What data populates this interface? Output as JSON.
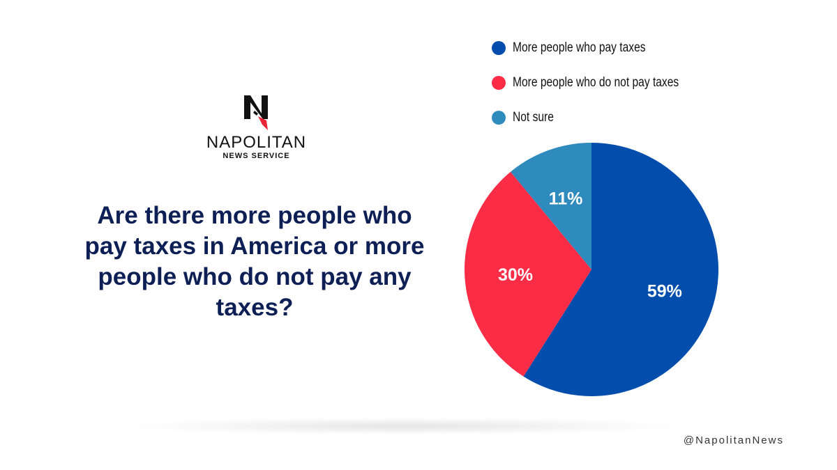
{
  "branding": {
    "logo_name": "NAPOLITAN",
    "logo_sub": "NEWS SERVICE",
    "handle": "@NapolitanNews"
  },
  "question": "Are there more people who pay taxes in America or more people who do not pay any taxes?",
  "colors": {
    "pay_taxes": "#034ead",
    "not_pay_taxes": "#fb2c45",
    "not_sure": "#2f8bbd",
    "text_dark": "#0d1f55"
  },
  "chart_data": {
    "type": "pie",
    "title": "",
    "legend_position": "top-right",
    "slices": [
      {
        "label": "More people who pay taxes",
        "value": 59,
        "display": "59%",
        "color": "#034ead"
      },
      {
        "label": "More people who do not pay taxes",
        "value": 30,
        "display": "30%",
        "color": "#fb2c45"
      },
      {
        "label": "Not sure",
        "value": 11,
        "display": "11%",
        "color": "#2f8bbd"
      }
    ]
  }
}
